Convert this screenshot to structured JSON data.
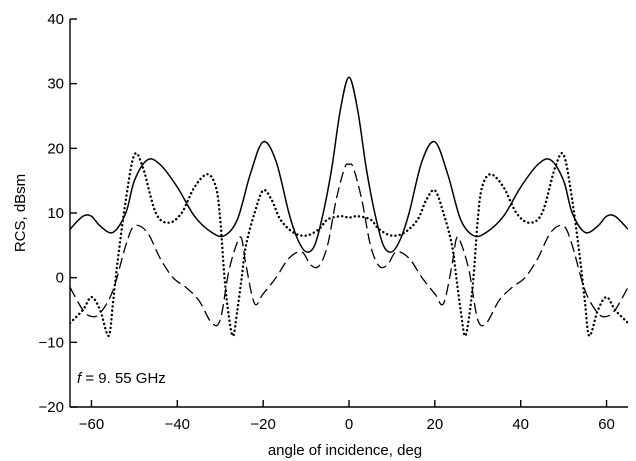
{
  "chart_data": {
    "type": "line",
    "title": "",
    "xlabel": "angle of incidence, deg",
    "ylabel": "RCS, dBsm",
    "xlim": [
      -65,
      65
    ],
    "ylim": [
      -20,
      40
    ],
    "x_ticks": [
      -60,
      -40,
      -20,
      0,
      20,
      40,
      60
    ],
    "y_ticks": [
      -20,
      -10,
      0,
      10,
      20,
      30,
      40
    ],
    "x_tick_labels": [
      "−60",
      "−40",
      "−20",
      "0",
      "20",
      "40",
      "60"
    ],
    "y_tick_labels": [
      "−20",
      "−10",
      "0",
      "10",
      "20",
      "30",
      "40"
    ],
    "grid": false,
    "annotation": {
      "italic": "f",
      "text": " = 9. 55 GHz"
    },
    "series": [
      {
        "style": "solid",
        "points": [
          [
            -65,
            7.5
          ],
          [
            -62,
            9.5
          ],
          [
            -60,
            9.5
          ],
          [
            -58,
            8
          ],
          [
            -55,
            7
          ],
          [
            -52,
            10
          ],
          [
            -50,
            15
          ],
          [
            -47,
            18.2
          ],
          [
            -44,
            17.5
          ],
          [
            -40,
            14
          ],
          [
            -36,
            9.5
          ],
          [
            -32,
            7
          ],
          [
            -29,
            6.5
          ],
          [
            -26,
            9
          ],
          [
            -23,
            16
          ],
          [
            -20,
            21
          ],
          [
            -17,
            18
          ],
          [
            -14,
            10
          ],
          [
            -12,
            6
          ],
          [
            -10,
            4
          ],
          [
            -8,
            5
          ],
          [
            -6,
            10
          ],
          [
            -4,
            17
          ],
          [
            -2,
            26
          ],
          [
            0,
            31
          ],
          [
            2,
            26
          ],
          [
            4,
            17
          ],
          [
            6,
            10
          ],
          [
            8,
            5
          ],
          [
            10,
            4
          ],
          [
            12,
            6
          ],
          [
            14,
            10
          ],
          [
            17,
            18
          ],
          [
            20,
            21
          ],
          [
            23,
            16
          ],
          [
            26,
            9
          ],
          [
            29,
            6.5
          ],
          [
            32,
            7
          ],
          [
            36,
            9.5
          ],
          [
            40,
            14
          ],
          [
            44,
            17.5
          ],
          [
            47,
            18.2
          ],
          [
            50,
            15
          ],
          [
            52,
            10
          ],
          [
            55,
            7
          ],
          [
            58,
            8
          ],
          [
            60,
            9.5
          ],
          [
            62,
            9.5
          ],
          [
            65,
            7.5
          ]
        ]
      },
      {
        "style": "dotted",
        "points": [
          [
            -65,
            -7
          ],
          [
            -62,
            -5
          ],
          [
            -60,
            -3
          ],
          [
            -58,
            -5
          ],
          [
            -56,
            -9
          ],
          [
            -55,
            -4
          ],
          [
            -54,
            2
          ],
          [
            -52,
            12
          ],
          [
            -50,
            19
          ],
          [
            -48,
            17
          ],
          [
            -45,
            10
          ],
          [
            -42,
            8.5
          ],
          [
            -39,
            10
          ],
          [
            -36,
            14
          ],
          [
            -33,
            16
          ],
          [
            -31,
            14
          ],
          [
            -30,
            9
          ],
          [
            -29,
            0
          ],
          [
            -28,
            -6
          ],
          [
            -27,
            -9
          ],
          [
            -26,
            -5
          ],
          [
            -25,
            0
          ],
          [
            -24,
            5
          ],
          [
            -22,
            10
          ],
          [
            -20,
            13.5
          ],
          [
            -18,
            12
          ],
          [
            -16,
            9
          ],
          [
            -13,
            7
          ],
          [
            -10,
            6.5
          ],
          [
            -7,
            7.5
          ],
          [
            -5,
            9
          ],
          [
            -2,
            9.5
          ],
          [
            0,
            9.3
          ],
          [
            2,
            9.5
          ],
          [
            5,
            9
          ],
          [
            7,
            7.5
          ],
          [
            10,
            6.5
          ],
          [
            13,
            7
          ],
          [
            16,
            9
          ],
          [
            18,
            12
          ],
          [
            20,
            13.5
          ],
          [
            22,
            10
          ],
          [
            24,
            5
          ],
          [
            25,
            0
          ],
          [
            26,
            -5
          ],
          [
            27,
            -9
          ],
          [
            28,
            -6
          ],
          [
            29,
            0
          ],
          [
            30,
            9
          ],
          [
            31,
            14
          ],
          [
            33,
            16
          ],
          [
            36,
            14
          ],
          [
            39,
            10
          ],
          [
            42,
            8.5
          ],
          [
            45,
            10
          ],
          [
            48,
            17
          ],
          [
            50,
            19
          ],
          [
            52,
            12
          ],
          [
            54,
            2
          ],
          [
            55,
            -4
          ],
          [
            56,
            -9
          ],
          [
            58,
            -5
          ],
          [
            60,
            -3
          ],
          [
            62,
            -5
          ],
          [
            65,
            -7
          ]
        ]
      },
      {
        "style": "dashed",
        "points": [
          [
            -65,
            -1.5
          ],
          [
            -62,
            -5
          ],
          [
            -60,
            -6
          ],
          [
            -58,
            -5.5
          ],
          [
            -55,
            -2
          ],
          [
            -52,
            5
          ],
          [
            -50,
            8
          ],
          [
            -47,
            7
          ],
          [
            -44,
            3
          ],
          [
            -41,
            0
          ],
          [
            -38,
            -1.5
          ],
          [
            -35,
            -3.5
          ],
          [
            -32,
            -7
          ],
          [
            -30,
            -6.5
          ],
          [
            -28,
            1
          ],
          [
            -26,
            5.5
          ],
          [
            -25,
            6
          ],
          [
            -24,
            2
          ],
          [
            -22,
            -4
          ],
          [
            -20,
            -2.5
          ],
          [
            -17,
            0
          ],
          [
            -14,
            3
          ],
          [
            -11,
            4
          ],
          [
            -9,
            2
          ],
          [
            -7,
            1.8
          ],
          [
            -5,
            5
          ],
          [
            -3,
            12
          ],
          [
            -1,
            17
          ],
          [
            0,
            17.5
          ],
          [
            1,
            17
          ],
          [
            3,
            12
          ],
          [
            5,
            5
          ],
          [
            7,
            1.8
          ],
          [
            9,
            2
          ],
          [
            11,
            4
          ],
          [
            14,
            3
          ],
          [
            17,
            0
          ],
          [
            20,
            -2.5
          ],
          [
            22,
            -4
          ],
          [
            24,
            2
          ],
          [
            25,
            6
          ],
          [
            26,
            5.5
          ],
          [
            28,
            1
          ],
          [
            30,
            -6.5
          ],
          [
            32,
            -7
          ],
          [
            35,
            -3.5
          ],
          [
            38,
            -1.5
          ],
          [
            41,
            0
          ],
          [
            44,
            3
          ],
          [
            47,
            7
          ],
          [
            50,
            8
          ],
          [
            52,
            5
          ],
          [
            55,
            -2
          ],
          [
            58,
            -5.5
          ],
          [
            60,
            -6
          ],
          [
            62,
            -5
          ],
          [
            65,
            -1.5
          ]
        ]
      }
    ]
  }
}
